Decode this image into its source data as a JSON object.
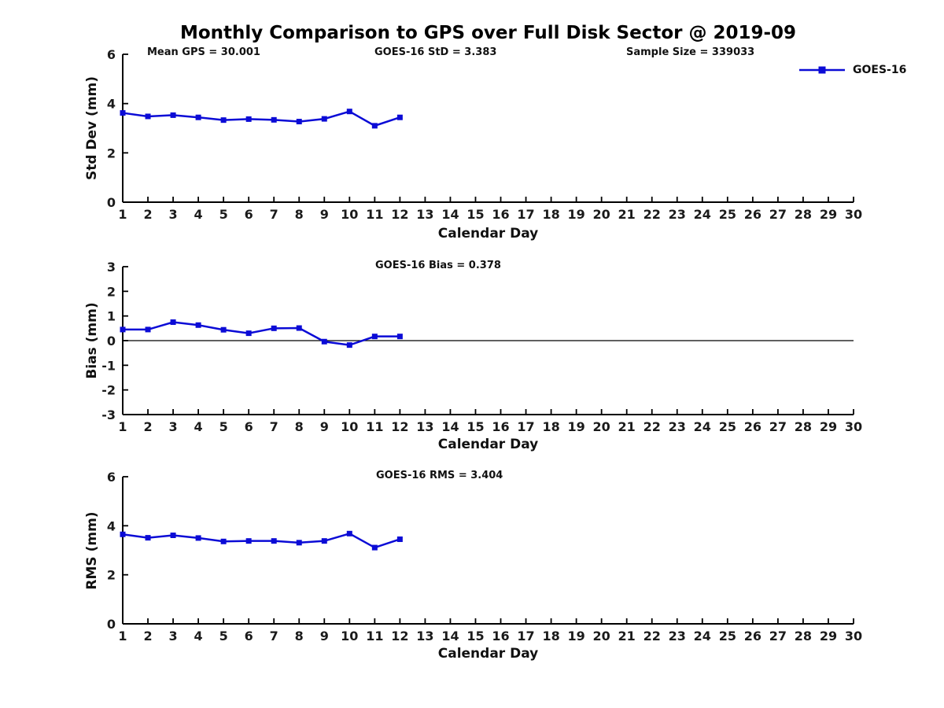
{
  "title": "Monthly Comparison to GPS over Full Disk Sector @ 2019-09",
  "series_color": "#0b0bd6",
  "axis_color": "#000000",
  "legend": {
    "label": "GOES-16",
    "position": "upper-right-outside"
  },
  "chart_data": [
    {
      "type": "line",
      "name": "std-dev",
      "ylabel": "Std Dev (mm)",
      "xlabel": "Calendar Day",
      "xlim": [
        1,
        30
      ],
      "ylim": [
        0,
        6
      ],
      "xticks": [
        1,
        2,
        3,
        4,
        5,
        6,
        7,
        8,
        9,
        10,
        11,
        12,
        13,
        14,
        15,
        16,
        17,
        18,
        19,
        20,
        21,
        22,
        23,
        24,
        25,
        26,
        27,
        28,
        29,
        30
      ],
      "yticks": [
        0,
        2,
        4,
        6
      ],
      "grid": false,
      "zero_line": false,
      "annotations": [
        "Mean GPS = 30.001",
        "GOES-16 StD = 3.383",
        "Sample Size = 339033"
      ],
      "series": [
        {
          "name": "GOES-16",
          "marker": "square",
          "x": [
            1,
            2,
            3,
            4,
            5,
            6,
            7,
            8,
            9,
            10,
            11,
            12
          ],
          "y": [
            3.62,
            3.48,
            3.53,
            3.44,
            3.33,
            3.37,
            3.34,
            3.27,
            3.38,
            3.68,
            3.1,
            3.44
          ]
        }
      ]
    },
    {
      "type": "line",
      "name": "bias",
      "ylabel": "Bias (mm)",
      "xlabel": "Calendar Day",
      "xlim": [
        1,
        30
      ],
      "ylim": [
        -3,
        3
      ],
      "xticks": [
        1,
        2,
        3,
        4,
        5,
        6,
        7,
        8,
        9,
        10,
        11,
        12,
        13,
        14,
        15,
        16,
        17,
        18,
        19,
        20,
        21,
        22,
        23,
        24,
        25,
        26,
        27,
        28,
        29,
        30
      ],
      "yticks": [
        -3,
        -2,
        -1,
        0,
        1,
        2,
        3
      ],
      "grid": false,
      "zero_line": true,
      "annotations": [
        "GOES-16 Bias = 0.378"
      ],
      "series": [
        {
          "name": "GOES-16",
          "marker": "square",
          "x": [
            1,
            2,
            3,
            4,
            5,
            6,
            7,
            8,
            9,
            10,
            11,
            12
          ],
          "y": [
            0.45,
            0.45,
            0.75,
            0.63,
            0.44,
            0.3,
            0.5,
            0.51,
            -0.04,
            -0.18,
            0.17,
            0.17
          ]
        }
      ]
    },
    {
      "type": "line",
      "name": "rms",
      "ylabel": "RMS (mm)",
      "xlabel": "Calendar Day",
      "xlim": [
        1,
        30
      ],
      "ylim": [
        0,
        6
      ],
      "xticks": [
        1,
        2,
        3,
        4,
        5,
        6,
        7,
        8,
        9,
        10,
        11,
        12,
        13,
        14,
        15,
        16,
        17,
        18,
        19,
        20,
        21,
        22,
        23,
        24,
        25,
        26,
        27,
        28,
        29,
        30
      ],
      "yticks": [
        0,
        2,
        4,
        6
      ],
      "grid": false,
      "zero_line": false,
      "annotations": [
        "GOES-16 RMS = 3.404"
      ],
      "series": [
        {
          "name": "GOES-16",
          "marker": "square",
          "x": [
            1,
            2,
            3,
            4,
            5,
            6,
            7,
            8,
            9,
            10,
            11,
            12
          ],
          "y": [
            3.65,
            3.51,
            3.61,
            3.5,
            3.36,
            3.38,
            3.38,
            3.31,
            3.38,
            3.68,
            3.11,
            3.45
          ]
        }
      ]
    }
  ]
}
